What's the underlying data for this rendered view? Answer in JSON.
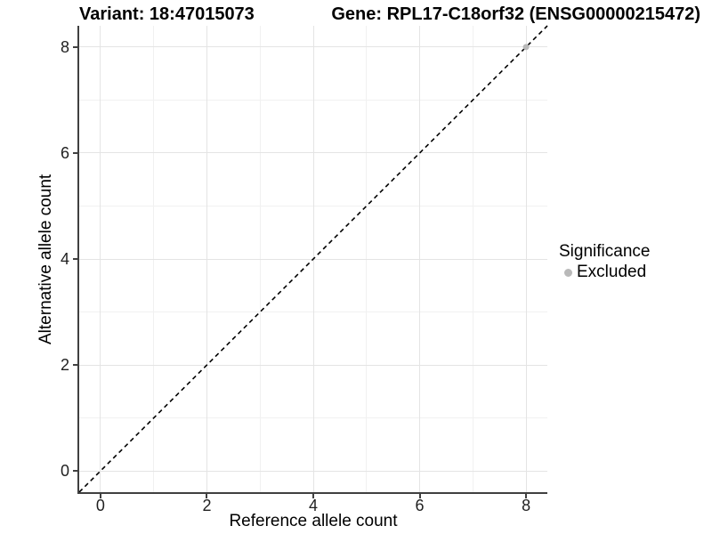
{
  "title": {
    "variant": "Variant: 18:47015073",
    "gene": "Gene: RPL17-C18orf32 (ENSG00000215472)"
  },
  "axes": {
    "x": {
      "label": "Reference allele count"
    },
    "y": {
      "label": "Alternative allele count"
    }
  },
  "legend": {
    "title": "Significance",
    "items": [
      {
        "label": "Excluded",
        "color": "#b9b9b9"
      }
    ]
  },
  "chart_data": {
    "type": "scatter",
    "title": "Variant: 18:47015073 | Gene: RPL17-C18orf32 (ENSG00000215472)",
    "xlabel": "Reference allele count",
    "ylabel": "Alternative allele count",
    "xlim": [
      -0.4,
      8.4
    ],
    "ylim": [
      -0.4,
      8.4
    ],
    "x_ticks": [
      0,
      2,
      4,
      6,
      8
    ],
    "y_ticks": [
      0,
      2,
      4,
      6,
      8
    ],
    "minor_x_ticks": [
      1,
      3,
      5,
      7
    ],
    "minor_y_ticks": [
      1,
      3,
      5,
      7
    ],
    "grid": true,
    "legend_position": "right",
    "series": [
      {
        "name": "Excluded",
        "color": "#b9b9b9",
        "points": [
          [
            8,
            8
          ]
        ]
      }
    ],
    "reference_line": {
      "type": "identity",
      "style": "dashed",
      "color": "#000000",
      "from": [
        -0.4,
        -0.4
      ],
      "to": [
        8.4,
        8.4
      ]
    }
  }
}
